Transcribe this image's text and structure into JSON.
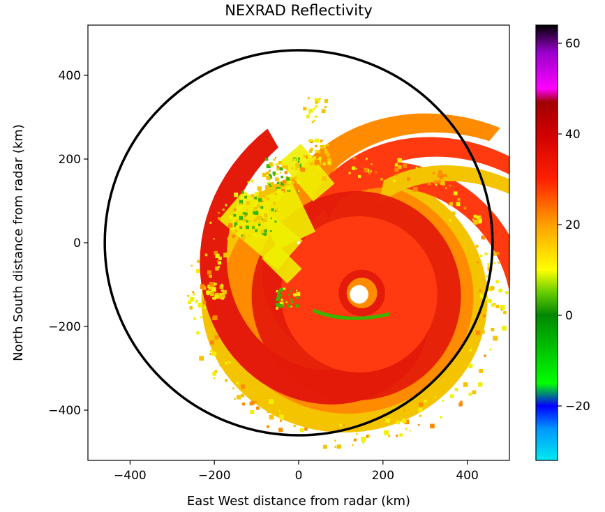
{
  "chart_data": {
    "type": "heatmap",
    "title": "NEXRAD Reflectivity",
    "xlabel": "East West distance from radar (km)",
    "ylabel": "North South distance from radar (km)",
    "xlim": [
      -500,
      500
    ],
    "ylim": [
      -520,
      520
    ],
    "x_ticks": [
      -400,
      -200,
      0,
      200,
      400
    ],
    "y_ticks": [
      400,
      200,
      0,
      -200,
      -400
    ],
    "x_tick_labels": [
      "−400",
      "−200",
      "0",
      "200",
      "400"
    ],
    "y_tick_labels": [
      "400",
      "200",
      "0",
      "−200",
      "−400"
    ],
    "range_ring_km": 460,
    "radar_location": [
      0,
      0
    ],
    "storm": {
      "eye_center_km": [
        150,
        -120
      ],
      "eye_radius_km": 22,
      "eyewall_radius_km": 55,
      "max_extent_km": 300
    },
    "colorbar": {
      "range": [
        -32,
        64
      ],
      "ticks": [
        60,
        40,
        20,
        0,
        -20
      ],
      "tick_labels": [
        "60",
        "40",
        "20",
        "0",
        "−20"
      ],
      "stops": [
        {
          "value": -32,
          "color": "#00eaf0"
        },
        {
          "value": -25,
          "color": "#0096ff"
        },
        {
          "value": -20,
          "color": "#0000ff"
        },
        {
          "value": -15,
          "color": "#00ff00"
        },
        {
          "value": 0,
          "color": "#008800"
        },
        {
          "value": 5,
          "color": "#66cc00"
        },
        {
          "value": 10,
          "color": "#ffff00"
        },
        {
          "value": 20,
          "color": "#ffa000"
        },
        {
          "value": 30,
          "color": "#ff2000"
        },
        {
          "value": 40,
          "color": "#d00000"
        },
        {
          "value": 47,
          "color": "#a00000"
        },
        {
          "value": 50,
          "color": "#ff00ff"
        },
        {
          "value": 58,
          "color": "#9900cc"
        },
        {
          "value": 64,
          "color": "#000000"
        }
      ]
    },
    "reflectivity_colors": {
      "core": "#e41a0a",
      "heavy": "#ff3a10",
      "moderate": "#ff8c00",
      "light": "#f5c400",
      "weak": "#f0f000",
      "edge": "#3cb400"
    },
    "grid": false
  }
}
